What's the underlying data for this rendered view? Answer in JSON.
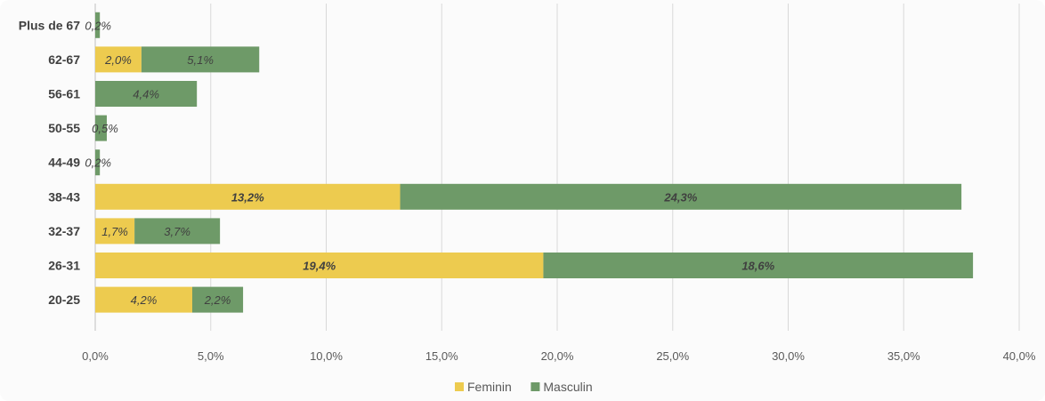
{
  "chart_data": {
    "type": "bar",
    "orientation": "horizontal",
    "stacked": true,
    "categories": [
      "20-25",
      "26-31",
      "32-37",
      "38-43",
      "44-49",
      "50-55",
      "56-61",
      "62-67",
      "Plus de 67"
    ],
    "series": [
      {
        "name": "Feminin",
        "color": "#EDCB4F",
        "values": [
          4.2,
          19.4,
          1.7,
          13.2,
          0,
          0,
          0,
          2.0,
          0
        ],
        "labels": [
          "4,2%",
          "19,4%",
          "1,7%",
          "13,2%",
          "",
          "",
          "",
          "2,0%",
          ""
        ]
      },
      {
        "name": "Masculin",
        "color": "#6E9A68",
        "values": [
          2.2,
          18.6,
          3.7,
          24.3,
          0.2,
          0.5,
          4.4,
          5.1,
          0.2
        ],
        "labels": [
          "2,2%",
          "18,6%",
          "3,7%",
          "24,3%",
          "0,2%",
          "0,5%",
          "4,4%",
          "5,1%",
          "0,2%"
        ]
      }
    ],
    "xlim": [
      0,
      40
    ],
    "x_ticks": [
      0,
      5,
      10,
      15,
      20,
      25,
      30,
      35,
      40
    ],
    "x_tick_labels": [
      "0,0%",
      "5,0%",
      "10,0%",
      "15,0%",
      "20,0%",
      "25,0%",
      "30,0%",
      "35,0%",
      "40,0%"
    ],
    "bold_labels_categories": [
      "26-31",
      "38-43"
    ],
    "grid": "vertical",
    "legend_position": "bottom",
    "title": "",
    "xlabel": "",
    "ylabel": ""
  }
}
